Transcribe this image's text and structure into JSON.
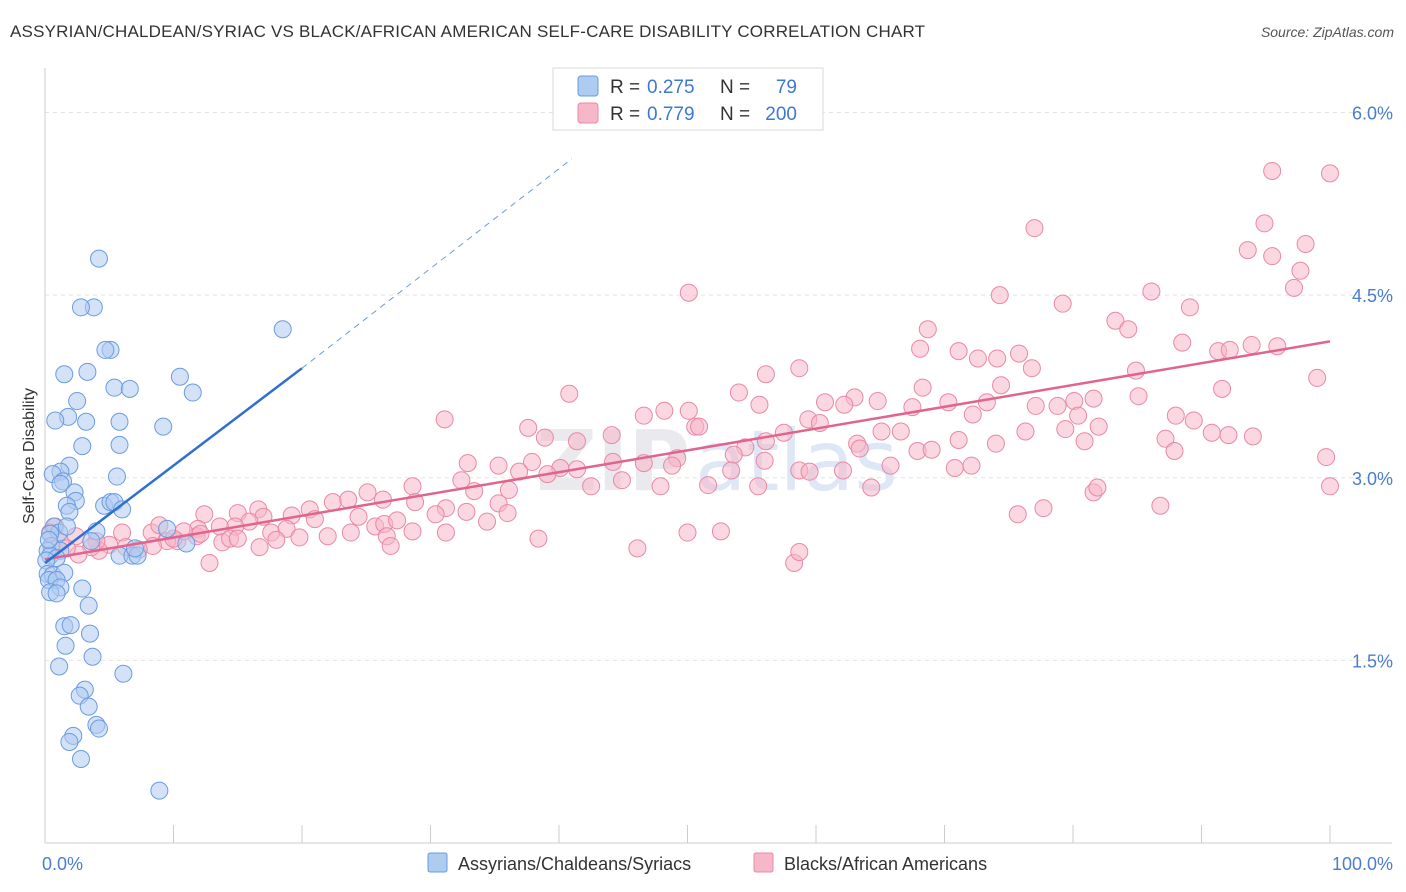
{
  "title": "ASSYRIAN/CHALDEAN/SYRIAC VS BLACK/AFRICAN AMERICAN SELF-CARE DISABILITY CORRELATION CHART",
  "source": "Source: ZipAtlas.com",
  "watermark": {
    "zip": "ZIP",
    "atlas": "atlas"
  },
  "legend_box": [
    {
      "r_label": "R =",
      "r_value": "0.275",
      "n_label": "N =",
      "n_value": "79"
    },
    {
      "r_label": "R =",
      "r_value": "0.779",
      "n_label": "N =",
      "n_value": "200"
    }
  ],
  "colors": {
    "blue_fill": "#aecbf0",
    "blue_stroke": "#6b9be0",
    "blue_line": "#2f6fd1",
    "pink_fill": "#f6b7c9",
    "pink_stroke": "#ea88a6",
    "pink_line": "#e0648d",
    "axis_label": "#4a7dd0",
    "grid": "#e4e4e4"
  },
  "chart_data": {
    "type": "scatter",
    "xlabel": "",
    "ylabel": "Self-Care Disability",
    "xlim": [
      0,
      100
    ],
    "ylim": [
      0,
      6.3
    ],
    "x_tick_labels": [
      "0.0%",
      "100.0%"
    ],
    "y_ticks": [
      1.5,
      3.0,
      4.5,
      6.0
    ],
    "y_tick_labels": [
      "1.5%",
      "3.0%",
      "4.5%",
      "6.0%"
    ],
    "legend_position": "bottom",
    "series": [
      {
        "name": "Assyrians/Chaldeans/Syriacs",
        "r": 0.275,
        "n": 79,
        "trend": {
          "x": [
            0.0,
            20.0
          ],
          "y": [
            2.3,
            3.9
          ]
        },
        "trend_extension": {
          "x": [
            20.0,
            41.0
          ],
          "y": [
            3.9,
            5.62
          ]
        },
        "points": [
          [
            4.2,
            4.8
          ],
          [
            3.8,
            4.4
          ],
          [
            2.8,
            4.4
          ],
          [
            5.1,
            4.05
          ],
          [
            4.7,
            4.05
          ],
          [
            18.5,
            4.22
          ],
          [
            1.5,
            3.85
          ],
          [
            3.3,
            3.87
          ],
          [
            10.5,
            3.83
          ],
          [
            5.4,
            3.74
          ],
          [
            6.6,
            3.73
          ],
          [
            11.5,
            3.7
          ],
          [
            2.5,
            3.63
          ],
          [
            1.8,
            3.5
          ],
          [
            0.8,
            3.47
          ],
          [
            3.2,
            3.46
          ],
          [
            5.8,
            3.46
          ],
          [
            9.2,
            3.42
          ],
          [
            2.9,
            3.26
          ],
          [
            5.8,
            3.27
          ],
          [
            1.9,
            3.1
          ],
          [
            1.2,
            3.05
          ],
          [
            0.6,
            3.03
          ],
          [
            5.6,
            3.01
          ],
          [
            1.4,
            2.97
          ],
          [
            1.2,
            2.95
          ],
          [
            2.3,
            2.88
          ],
          [
            2.4,
            2.81
          ],
          [
            1.7,
            2.77
          ],
          [
            1.9,
            2.72
          ],
          [
            4.6,
            2.77
          ],
          [
            5.1,
            2.8
          ],
          [
            5.4,
            2.8
          ],
          [
            6.0,
            2.74
          ],
          [
            0.7,
            2.6
          ],
          [
            1.1,
            2.55
          ],
          [
            1.7,
            2.6
          ],
          [
            0.4,
            2.54
          ],
          [
            4.0,
            2.56
          ],
          [
            9.5,
            2.58
          ],
          [
            11.0,
            2.46
          ],
          [
            0.5,
            2.44
          ],
          [
            0.2,
            2.4
          ],
          [
            1.2,
            2.4
          ],
          [
            0.4,
            2.36
          ],
          [
            0.9,
            2.34
          ],
          [
            5.8,
            2.36
          ],
          [
            6.8,
            2.36
          ],
          [
            7.2,
            2.36
          ],
          [
            0.1,
            2.32
          ],
          [
            0.2,
            2.21
          ],
          [
            0.6,
            2.2
          ],
          [
            1.5,
            2.22
          ],
          [
            0.3,
            2.16
          ],
          [
            0.9,
            2.16
          ],
          [
            1.2,
            2.1
          ],
          [
            2.9,
            2.09
          ],
          [
            0.4,
            2.06
          ],
          [
            0.9,
            2.05
          ],
          [
            3.4,
            1.95
          ],
          [
            1.5,
            1.78
          ],
          [
            2.0,
            1.79
          ],
          [
            3.5,
            1.72
          ],
          [
            1.6,
            1.62
          ],
          [
            3.7,
            1.53
          ],
          [
            1.1,
            1.45
          ],
          [
            6.1,
            1.39
          ],
          [
            3.1,
            1.26
          ],
          [
            2.7,
            1.21
          ],
          [
            3.4,
            1.12
          ],
          [
            4.0,
            0.97
          ],
          [
            4.2,
            0.94
          ],
          [
            2.2,
            0.88
          ],
          [
            1.9,
            0.83
          ],
          [
            2.8,
            0.69
          ],
          [
            8.9,
            0.43
          ],
          [
            0.3,
            2.49
          ],
          [
            3.6,
            2.48
          ],
          [
            7.0,
            2.42
          ]
        ]
      },
      {
        "name": "Blacks/African Americans",
        "r": 0.779,
        "n": 200,
        "trend": {
          "x": [
            0.0,
            100.0
          ],
          "y": [
            2.33,
            4.12
          ]
        },
        "points": [
          [
            95.5,
            5.52
          ],
          [
            100.0,
            5.5
          ],
          [
            94.9,
            5.09
          ],
          [
            77.0,
            5.05
          ],
          [
            98.1,
            4.92
          ],
          [
            93.6,
            4.87
          ],
          [
            95.5,
            4.82
          ],
          [
            97.7,
            4.7
          ],
          [
            97.2,
            4.56
          ],
          [
            50.1,
            4.52
          ],
          [
            74.3,
            4.5
          ],
          [
            86.1,
            4.53
          ],
          [
            79.2,
            4.43
          ],
          [
            89.1,
            4.4
          ],
          [
            83.3,
            4.29
          ],
          [
            68.7,
            4.22
          ],
          [
            84.3,
            4.22
          ],
          [
            88.5,
            4.11
          ],
          [
            91.3,
            4.04
          ],
          [
            92.2,
            4.05
          ],
          [
            93.9,
            4.09
          ],
          [
            95.9,
            4.08
          ],
          [
            68.1,
            4.06
          ],
          [
            71.1,
            4.04
          ],
          [
            75.8,
            4.02
          ],
          [
            72.6,
            3.98
          ],
          [
            74.1,
            3.98
          ],
          [
            76.8,
            3.9
          ],
          [
            58.7,
            3.9
          ],
          [
            84.9,
            3.88
          ],
          [
            56.1,
            3.85
          ],
          [
            99.0,
            3.82
          ],
          [
            74.4,
            3.76
          ],
          [
            68.3,
            3.74
          ],
          [
            91.6,
            3.73
          ],
          [
            54.0,
            3.7
          ],
          [
            40.8,
            3.69
          ],
          [
            63.0,
            3.66
          ],
          [
            64.8,
            3.63
          ],
          [
            70.3,
            3.62
          ],
          [
            73.3,
            3.62
          ],
          [
            80.1,
            3.63
          ],
          [
            81.6,
            3.65
          ],
          [
            85.1,
            3.67
          ],
          [
            60.7,
            3.62
          ],
          [
            55.6,
            3.6
          ],
          [
            62.2,
            3.6
          ],
          [
            67.5,
            3.58
          ],
          [
            77.1,
            3.59
          ],
          [
            78.8,
            3.59
          ],
          [
            48.2,
            3.55
          ],
          [
            50.1,
            3.55
          ],
          [
            46.6,
            3.51
          ],
          [
            72.2,
            3.52
          ],
          [
            80.4,
            3.51
          ],
          [
            88.0,
            3.51
          ],
          [
            89.4,
            3.47
          ],
          [
            31.1,
            3.48
          ],
          [
            59.4,
            3.48
          ],
          [
            60.3,
            3.45
          ],
          [
            82.0,
            3.42
          ],
          [
            79.4,
            3.4
          ],
          [
            76.3,
            3.38
          ],
          [
            65.1,
            3.38
          ],
          [
            66.6,
            3.38
          ],
          [
            90.8,
            3.37
          ],
          [
            92.1,
            3.35
          ],
          [
            50.6,
            3.42
          ],
          [
            57.5,
            3.37
          ],
          [
            50.9,
            3.42
          ],
          [
            37.6,
            3.41
          ],
          [
            44.1,
            3.35
          ],
          [
            38.9,
            3.33
          ],
          [
            41.4,
            3.3
          ],
          [
            56.1,
            3.3
          ],
          [
            71.1,
            3.31
          ],
          [
            63.2,
            3.28
          ],
          [
            74.0,
            3.28
          ],
          [
            80.9,
            3.3
          ],
          [
            54.5,
            3.25
          ],
          [
            63.4,
            3.24
          ],
          [
            67.9,
            3.22
          ],
          [
            69.0,
            3.23
          ],
          [
            87.2,
            3.32
          ],
          [
            87.9,
            3.22
          ],
          [
            94.0,
            3.34
          ],
          [
            99.7,
            3.17
          ],
          [
            53.6,
            3.19
          ],
          [
            56.0,
            3.14
          ],
          [
            49.2,
            3.16
          ],
          [
            48.8,
            3.1
          ],
          [
            37.9,
            3.13
          ],
          [
            40.1,
            3.08
          ],
          [
            32.9,
            3.12
          ],
          [
            35.3,
            3.1
          ],
          [
            44.2,
            3.13
          ],
          [
            46.6,
            3.12
          ],
          [
            39.1,
            3.03
          ],
          [
            41.4,
            3.07
          ],
          [
            36.9,
            3.05
          ],
          [
            53.4,
            3.06
          ],
          [
            62.1,
            3.06
          ],
          [
            58.7,
            3.06
          ],
          [
            59.5,
            3.05
          ],
          [
            65.8,
            3.1
          ],
          [
            70.8,
            3.08
          ],
          [
            72.1,
            3.1
          ],
          [
            51.6,
            2.94
          ],
          [
            55.5,
            2.93
          ],
          [
            64.3,
            2.92
          ],
          [
            47.9,
            2.93
          ],
          [
            42.5,
            2.93
          ],
          [
            44.9,
            2.98
          ],
          [
            32.4,
            2.98
          ],
          [
            28.6,
            2.93
          ],
          [
            33.4,
            2.89
          ],
          [
            36.1,
            2.9
          ],
          [
            25.1,
            2.88
          ],
          [
            26.3,
            2.82
          ],
          [
            22.4,
            2.8
          ],
          [
            31.2,
            2.75
          ],
          [
            28.8,
            2.8
          ],
          [
            35.3,
            2.79
          ],
          [
            30.4,
            2.7
          ],
          [
            32.8,
            2.72
          ],
          [
            36.0,
            2.71
          ],
          [
            34.4,
            2.64
          ],
          [
            86.8,
            2.77
          ],
          [
            81.6,
            2.88
          ],
          [
            81.9,
            2.92
          ],
          [
            77.7,
            2.75
          ],
          [
            75.7,
            2.7
          ],
          [
            100.0,
            2.93
          ],
          [
            23.6,
            2.82
          ],
          [
            20.6,
            2.74
          ],
          [
            19.2,
            2.69
          ],
          [
            21.0,
            2.66
          ],
          [
            24.4,
            2.68
          ],
          [
            25.7,
            2.6
          ],
          [
            26.4,
            2.62
          ],
          [
            27.4,
            2.65
          ],
          [
            16.6,
            2.74
          ],
          [
            17.0,
            2.68
          ],
          [
            15.0,
            2.71
          ],
          [
            15.9,
            2.64
          ],
          [
            12.4,
            2.7
          ],
          [
            14.8,
            2.6
          ],
          [
            13.6,
            2.6
          ],
          [
            11.9,
            2.58
          ],
          [
            17.6,
            2.55
          ],
          [
            18.8,
            2.58
          ],
          [
            19.8,
            2.51
          ],
          [
            22.0,
            2.52
          ],
          [
            23.8,
            2.55
          ],
          [
            26.6,
            2.52
          ],
          [
            28.6,
            2.56
          ],
          [
            26.9,
            2.44
          ],
          [
            31.2,
            2.55
          ],
          [
            18.0,
            2.49
          ],
          [
            11.8,
            2.52
          ],
          [
            12.1,
            2.54
          ],
          [
            13.8,
            2.47
          ],
          [
            14.4,
            2.5
          ],
          [
            15.0,
            2.5
          ],
          [
            10.3,
            2.48
          ],
          [
            9.5,
            2.48
          ],
          [
            8.3,
            2.55
          ],
          [
            8.9,
            2.61
          ],
          [
            8.4,
            2.44
          ],
          [
            10.8,
            2.56
          ],
          [
            10.0,
            2.5
          ],
          [
            12.8,
            2.3
          ],
          [
            16.7,
            2.43
          ],
          [
            6.0,
            2.55
          ],
          [
            6.3,
            2.43
          ],
          [
            7.3,
            2.41
          ],
          [
            5.0,
            2.45
          ],
          [
            4.2,
            2.4
          ],
          [
            4.0,
            2.48
          ],
          [
            3.6,
            2.43
          ],
          [
            2.4,
            2.52
          ],
          [
            2.6,
            2.37
          ],
          [
            1.2,
            2.47
          ],
          [
            1.7,
            2.42
          ],
          [
            0.8,
            2.6
          ],
          [
            0.4,
            2.55
          ],
          [
            38.4,
            2.5
          ],
          [
            46.1,
            2.42
          ],
          [
            50.0,
            2.55
          ],
          [
            52.6,
            2.56
          ],
          [
            58.3,
            2.3
          ],
          [
            58.7,
            2.39
          ]
        ]
      }
    ]
  }
}
